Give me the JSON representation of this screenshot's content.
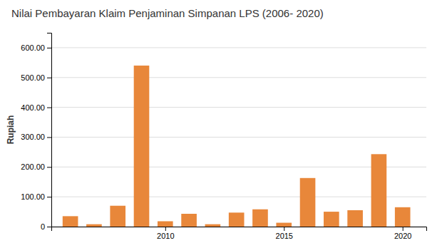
{
  "chart_data": {
    "type": "bar",
    "title": "Nilai Pembayaran Klaim Penjaminan Simpanan LPS (2006- 2020)",
    "ylabel": "Rupiah",
    "x": [
      2006,
      2007,
      2008,
      2009,
      2010,
      2011,
      2012,
      2013,
      2014,
      2015,
      2016,
      2017,
      2018,
      2019,
      2020
    ],
    "values": [
      35,
      8,
      70,
      540,
      18,
      43,
      8,
      47,
      58,
      13,
      163,
      50,
      55,
      243,
      65
    ],
    "color": "#E8873A",
    "xlim": [
      2005.2,
      2021.0
    ],
    "xticks": [
      2010,
      2015,
      2020
    ],
    "ylim": [
      0,
      650
    ],
    "yticks": [
      0,
      {
        "value": 100,
        "label": "100.00"
      },
      {
        "value": 200,
        "label": "200.00"
      },
      {
        "value": 300,
        "label": "300.00"
      },
      {
        "value": 400,
        "label": "400.00"
      },
      {
        "value": 500,
        "label": "500.00"
      },
      {
        "value": 600,
        "label": "600.00"
      }
    ],
    "grid": true
  }
}
